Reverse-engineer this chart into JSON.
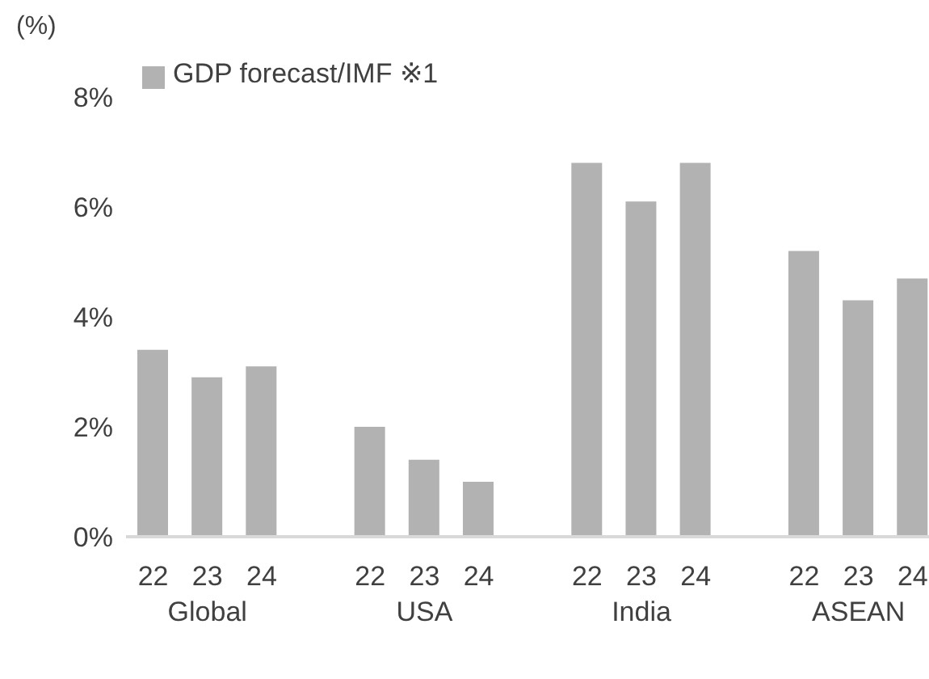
{
  "chart_data": {
    "type": "bar",
    "ylabel": "(%)",
    "categories": [
      "22",
      "23",
      "24",
      "22",
      "23",
      "24",
      "22",
      "23",
      "24",
      "22",
      "23",
      "24"
    ],
    "annotations": [
      "Global",
      "USA",
      "India",
      "ASEAN"
    ],
    "series": [
      {
        "name": "GDP forecast/IMF ※1",
        "color": "#b2b2b2",
        "values": [
          3.4,
          2.9,
          3.1,
          2.0,
          1.4,
          1.0,
          6.8,
          6.1,
          6.8,
          5.2,
          4.3,
          4.7
        ]
      }
    ],
    "ylim": [
      0,
      8
    ],
    "yticks": [
      {
        "value": 0,
        "label": "0%"
      },
      {
        "value": 2,
        "label": "2%"
      },
      {
        "value": 4,
        "label": "4%"
      },
      {
        "value": 6,
        "label": "6%"
      },
      {
        "value": 8,
        "label": "8%"
      }
    ],
    "grid": false,
    "legend": "top left"
  }
}
